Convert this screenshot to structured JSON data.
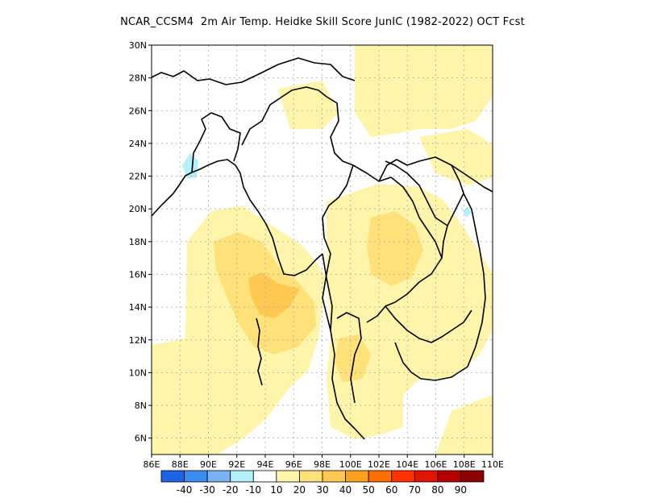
{
  "title": "NCAR_CCSM4  2m Air Temp. Heidke Skill Score JunIC (1982-2022) OCT Fcst",
  "map": {
    "lon_range": [
      86,
      110
    ],
    "lat_range": [
      5,
      30
    ],
    "lon_ticks": [
      "86E",
      "88E",
      "90E",
      "92E",
      "94E",
      "96E",
      "98E",
      "100E",
      "102E",
      "104E",
      "106E",
      "108E",
      "110E"
    ],
    "lat_ticks": [
      "6N",
      "8N",
      "10N",
      "12N",
      "14N",
      "16N",
      "18N",
      "20N",
      "22N",
      "24N",
      "26N",
      "28N",
      "30N"
    ],
    "gridlines": true,
    "gridline_style": "dotted"
  },
  "colorbar": {
    "labels": [
      "-40",
      "-30",
      "-20",
      "-10",
      "10",
      "20",
      "30",
      "40",
      "50",
      "60",
      "70",
      "80",
      "90"
    ],
    "colors": [
      "#1e64e6",
      "#3c8cf0",
      "#78b4f5",
      "#b4f0fa",
      "#ffffff",
      "#fff5aa",
      "#ffe17a",
      "#ffc850",
      "#ffa01e",
      "#ff6e00",
      "#ff3200",
      "#e11400",
      "#b40000",
      "#8c0000"
    ]
  }
}
